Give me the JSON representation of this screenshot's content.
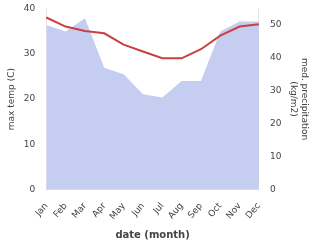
{
  "chart_data": {
    "type": "line",
    "categories": [
      "Jan",
      "Feb",
      "Mar",
      "Apr",
      "May",
      "Jun",
      "Jul",
      "Aug",
      "Sep",
      "Oct",
      "Nov",
      "Dec"
    ],
    "series": [
      {
        "type": "line",
        "color": "#c94040",
        "values": [
          38,
          36,
          35,
          34.5,
          32,
          30.5,
          29,
          29,
          31,
          34,
          36,
          36.5
        ]
      },
      {
        "type": "area",
        "color": "#c5cdf0",
        "axis": "y2",
        "values": [
          50,
          48,
          52,
          37,
          35,
          29,
          28,
          33,
          33,
          48,
          51,
          51
        ]
      }
    ],
    "xlabel": "date (month)",
    "ylabel": "max temp (C)",
    "y2label": "med. precipitation\n(kg/m2)",
    "ylim": [
      0,
      40
    ],
    "yticks": [
      0,
      10,
      20,
      30,
      40
    ],
    "y2lim": [
      0,
      55
    ],
    "y2ticks": [
      0,
      10,
      20,
      30,
      40,
      50
    ],
    "grid": false
  }
}
